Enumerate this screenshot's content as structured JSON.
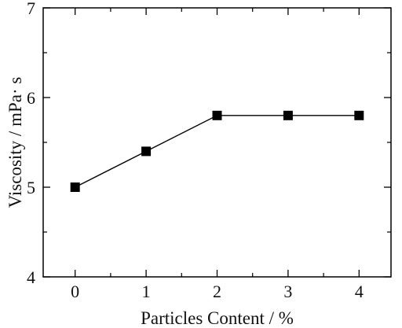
{
  "chart_data": {
    "type": "line",
    "title": "",
    "xlabel": "Particles Content / %",
    "ylabel": "Viscosity / mPa· s",
    "x": [
      0,
      1,
      2,
      3,
      4
    ],
    "series": [
      {
        "values": [
          5.0,
          5.4,
          5.8,
          5.8,
          5.8
        ]
      }
    ],
    "xlim": [
      -0.45,
      4.45
    ],
    "ylim": [
      4,
      7
    ],
    "xticks": [
      0,
      1,
      2,
      3,
      4
    ],
    "yticks": [
      4,
      5,
      6,
      7
    ],
    "xtick_labels": [
      "0",
      "1",
      "2",
      "3",
      "4"
    ],
    "ytick_labels": [
      "4",
      "5",
      "6",
      "7"
    ],
    "marker": "square",
    "color": "#000000",
    "grid": false,
    "legend": "none"
  }
}
